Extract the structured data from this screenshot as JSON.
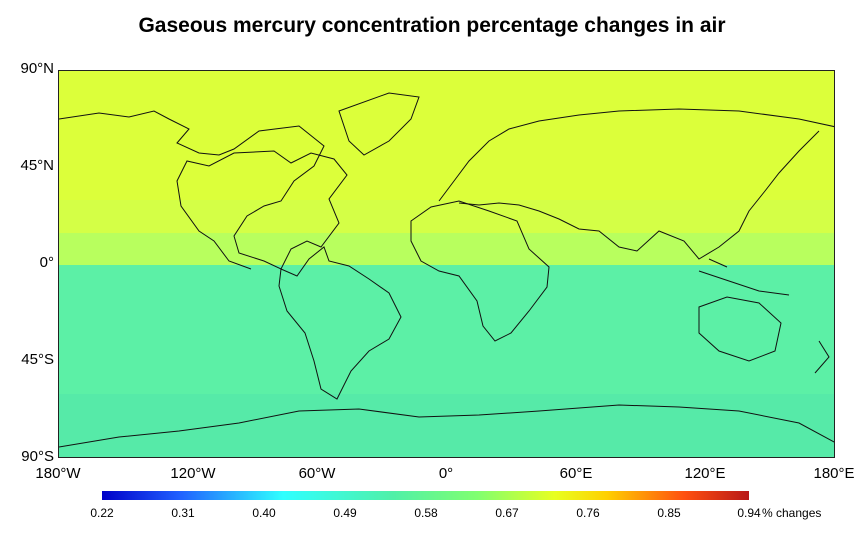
{
  "title": "Gaseous mercury concentration percentage changes in air",
  "y_axis": {
    "labels": [
      "90°N",
      "45°N",
      "0°",
      "45°S",
      "90°S"
    ]
  },
  "x_axis": {
    "labels": [
      "180°W",
      "120°W",
      "60°W",
      "0°",
      "60°E",
      "120°E",
      "180°E"
    ]
  },
  "colorbar": {
    "ticks": [
      "0.22",
      "0.31",
      "0.40",
      "0.49",
      "0.58",
      "0.67",
      "0.76",
      "0.85",
      "0.94"
    ],
    "unit": "% changes",
    "colors": [
      "#0000c8",
      "#30ffff",
      "#80ff70",
      "#e8ff20",
      "#b81818"
    ]
  },
  "chart_data": {
    "type": "heatmap",
    "title": "Gaseous mercury concentration percentage changes in air",
    "xlim": [
      -180,
      180
    ],
    "ylim": [
      -90,
      90
    ],
    "colorbar_range": [
      0.22,
      0.94
    ],
    "latitude_bands": [
      {
        "lat_range": [
          30,
          90
        ],
        "value": 0.71,
        "color": "#dcff3a"
      },
      {
        "lat_range": [
          15,
          30
        ],
        "value": 0.7,
        "color": "#d4ff46"
      },
      {
        "lat_range": [
          0,
          15
        ],
        "value": 0.67,
        "color": "#b8ff5e"
      },
      {
        "lat_range": [
          -60,
          0
        ],
        "value": 0.58,
        "color": "#5cf0a6"
      },
      {
        "lat_range": [
          -90,
          -60
        ],
        "value": 0.57,
        "color": "#56eaa8"
      }
    ]
  }
}
